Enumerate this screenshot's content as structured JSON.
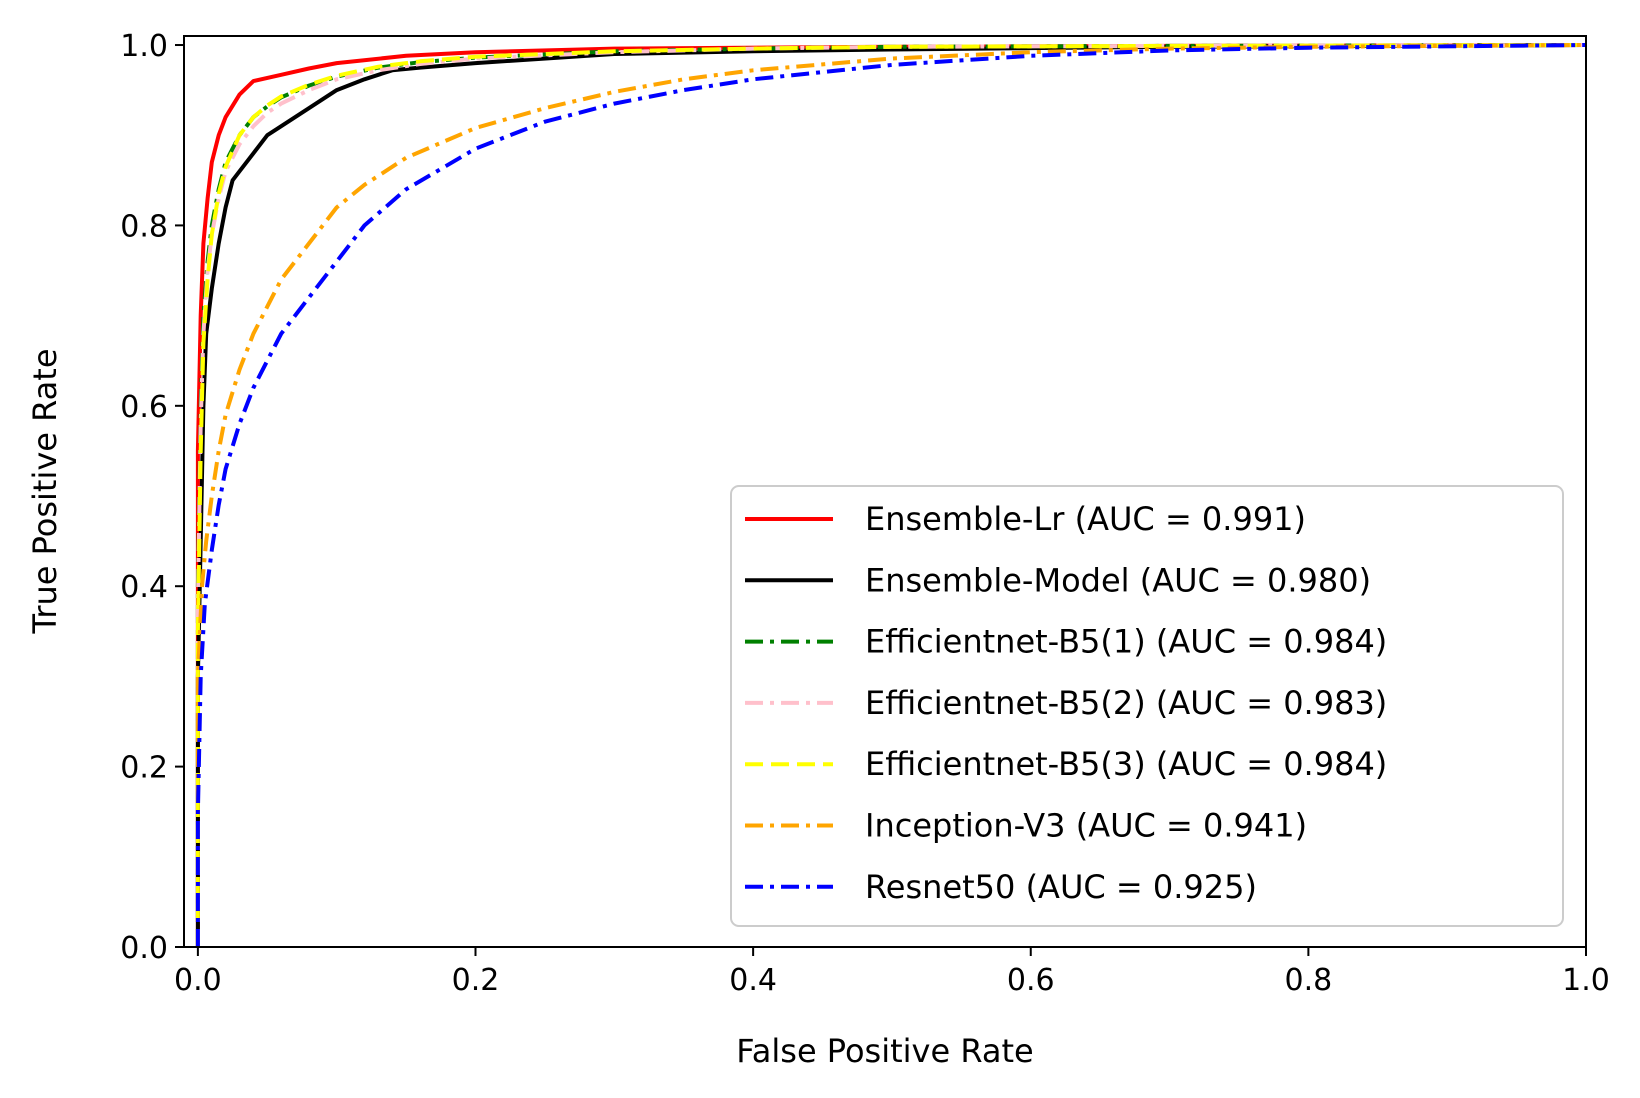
{
  "chart_data": {
    "type": "line",
    "title": "",
    "xlabel": "False Positive Rate",
    "ylabel": "True Positive Rate",
    "xlim": [
      -0.01,
      1.0
    ],
    "ylim": [
      0.0,
      1.01
    ],
    "xticks": [
      0.0,
      0.2,
      0.4,
      0.6,
      0.8,
      1.0
    ],
    "xtick_labels": [
      "0.0",
      "0.2",
      "0.4",
      "0.6",
      "0.8",
      "1.0"
    ],
    "yticks": [
      0.0,
      0.2,
      0.4,
      0.6,
      0.8,
      1.0
    ],
    "ytick_labels": [
      "0.0",
      "0.2",
      "0.4",
      "0.6",
      "0.8",
      "1.0"
    ],
    "grid": false,
    "legend_position": "lower-right",
    "series": [
      {
        "name": "Ensemble-Lr (AUC = 0.991)",
        "color": "#ff0000",
        "style": "solid",
        "x": [
          0.0,
          0.0,
          0.002,
          0.004,
          0.007,
          0.01,
          0.015,
          0.02,
          0.03,
          0.04,
          0.06,
          0.08,
          0.1,
          0.15,
          0.2,
          0.3,
          0.5,
          0.7,
          1.0
        ],
        "y": [
          0.0,
          0.55,
          0.7,
          0.78,
          0.83,
          0.87,
          0.9,
          0.92,
          0.945,
          0.96,
          0.967,
          0.974,
          0.98,
          0.988,
          0.992,
          0.996,
          0.998,
          0.999,
          1.0
        ]
      },
      {
        "name": "Ensemble-Model (AUC = 0.980)",
        "color": "#000000",
        "style": "solid",
        "x": [
          0.0,
          0.0,
          0.002,
          0.004,
          0.006,
          0.01,
          0.015,
          0.02,
          0.025,
          0.03,
          0.04,
          0.05,
          0.06,
          0.08,
          0.1,
          0.12,
          0.14,
          0.16,
          0.2,
          0.3,
          0.4,
          0.5,
          0.7,
          1.0
        ],
        "y": [
          0.0,
          0.3,
          0.45,
          0.6,
          0.68,
          0.73,
          0.78,
          0.82,
          0.85,
          0.86,
          0.88,
          0.9,
          0.91,
          0.93,
          0.95,
          0.962,
          0.972,
          0.975,
          0.98,
          0.99,
          0.993,
          0.995,
          0.998,
          1.0
        ]
      },
      {
        "name": "Efficientnet-B5(1) (AUC = 0.984)",
        "color": "#008000",
        "style": "dashdot",
        "x": [
          0.0,
          0.0,
          0.002,
          0.004,
          0.007,
          0.01,
          0.015,
          0.02,
          0.03,
          0.04,
          0.05,
          0.06,
          0.08,
          0.1,
          0.13,
          0.16,
          0.2,
          0.3,
          0.4,
          0.5,
          0.7,
          1.0
        ],
        "y": [
          0.0,
          0.4,
          0.6,
          0.7,
          0.76,
          0.8,
          0.84,
          0.87,
          0.9,
          0.92,
          0.932,
          0.942,
          0.955,
          0.965,
          0.975,
          0.981,
          0.986,
          0.993,
          0.996,
          0.998,
          0.999,
          1.0
        ]
      },
      {
        "name": "Efficientnet-B5(2) (AUC = 0.983)",
        "color": "#ffc0cb",
        "style": "dashdot",
        "x": [
          0.0,
          0.0,
          0.002,
          0.004,
          0.007,
          0.01,
          0.015,
          0.02,
          0.03,
          0.04,
          0.05,
          0.06,
          0.08,
          0.1,
          0.13,
          0.16,
          0.2,
          0.3,
          0.4,
          0.5,
          0.7,
          1.0
        ],
        "y": [
          0.0,
          0.38,
          0.58,
          0.68,
          0.75,
          0.79,
          0.83,
          0.86,
          0.89,
          0.91,
          0.925,
          0.935,
          0.95,
          0.962,
          0.972,
          0.979,
          0.985,
          0.992,
          0.996,
          0.998,
          0.999,
          1.0
        ]
      },
      {
        "name": "Efficientnet-B5(3) (AUC = 0.984)",
        "color": "#ffff00",
        "style": "dashed",
        "x": [
          0.0,
          0.0,
          0.002,
          0.004,
          0.007,
          0.01,
          0.015,
          0.02,
          0.03,
          0.04,
          0.05,
          0.06,
          0.08,
          0.1,
          0.13,
          0.16,
          0.2,
          0.3,
          0.4,
          0.5,
          0.7,
          1.0
        ],
        "y": [
          0.0,
          0.35,
          0.55,
          0.67,
          0.74,
          0.79,
          0.835,
          0.865,
          0.9,
          0.92,
          0.933,
          0.943,
          0.956,
          0.966,
          0.976,
          0.982,
          0.987,
          0.993,
          0.996,
          0.998,
          0.999,
          1.0
        ]
      },
      {
        "name": "Inception-V3 (AUC = 0.941)",
        "color": "#ffa500",
        "style": "dashdot",
        "x": [
          0.0,
          0.0,
          0.003,
          0.006,
          0.01,
          0.015,
          0.02,
          0.03,
          0.04,
          0.05,
          0.06,
          0.08,
          0.1,
          0.12,
          0.15,
          0.2,
          0.25,
          0.3,
          0.35,
          0.4,
          0.5,
          0.6,
          0.7,
          0.8,
          1.0
        ],
        "y": [
          0.0,
          0.3,
          0.4,
          0.45,
          0.5,
          0.55,
          0.59,
          0.64,
          0.68,
          0.71,
          0.74,
          0.78,
          0.82,
          0.845,
          0.875,
          0.908,
          0.93,
          0.948,
          0.962,
          0.972,
          0.985,
          0.992,
          0.996,
          0.998,
          1.0
        ]
      },
      {
        "name": "Resnet50 (AUC = 0.925)",
        "color": "#0000ff",
        "style": "dashdot",
        "x": [
          0.0,
          0.0,
          0.002,
          0.005,
          0.01,
          0.015,
          0.02,
          0.03,
          0.04,
          0.05,
          0.06,
          0.08,
          0.1,
          0.12,
          0.15,
          0.2,
          0.25,
          0.3,
          0.35,
          0.4,
          0.5,
          0.6,
          0.7,
          0.8,
          1.0
        ],
        "y": [
          0.0,
          0.15,
          0.3,
          0.38,
          0.44,
          0.49,
          0.53,
          0.58,
          0.62,
          0.65,
          0.68,
          0.72,
          0.76,
          0.8,
          0.84,
          0.885,
          0.915,
          0.935,
          0.95,
          0.962,
          0.978,
          0.988,
          0.994,
          0.997,
          1.0
        ]
      }
    ]
  }
}
